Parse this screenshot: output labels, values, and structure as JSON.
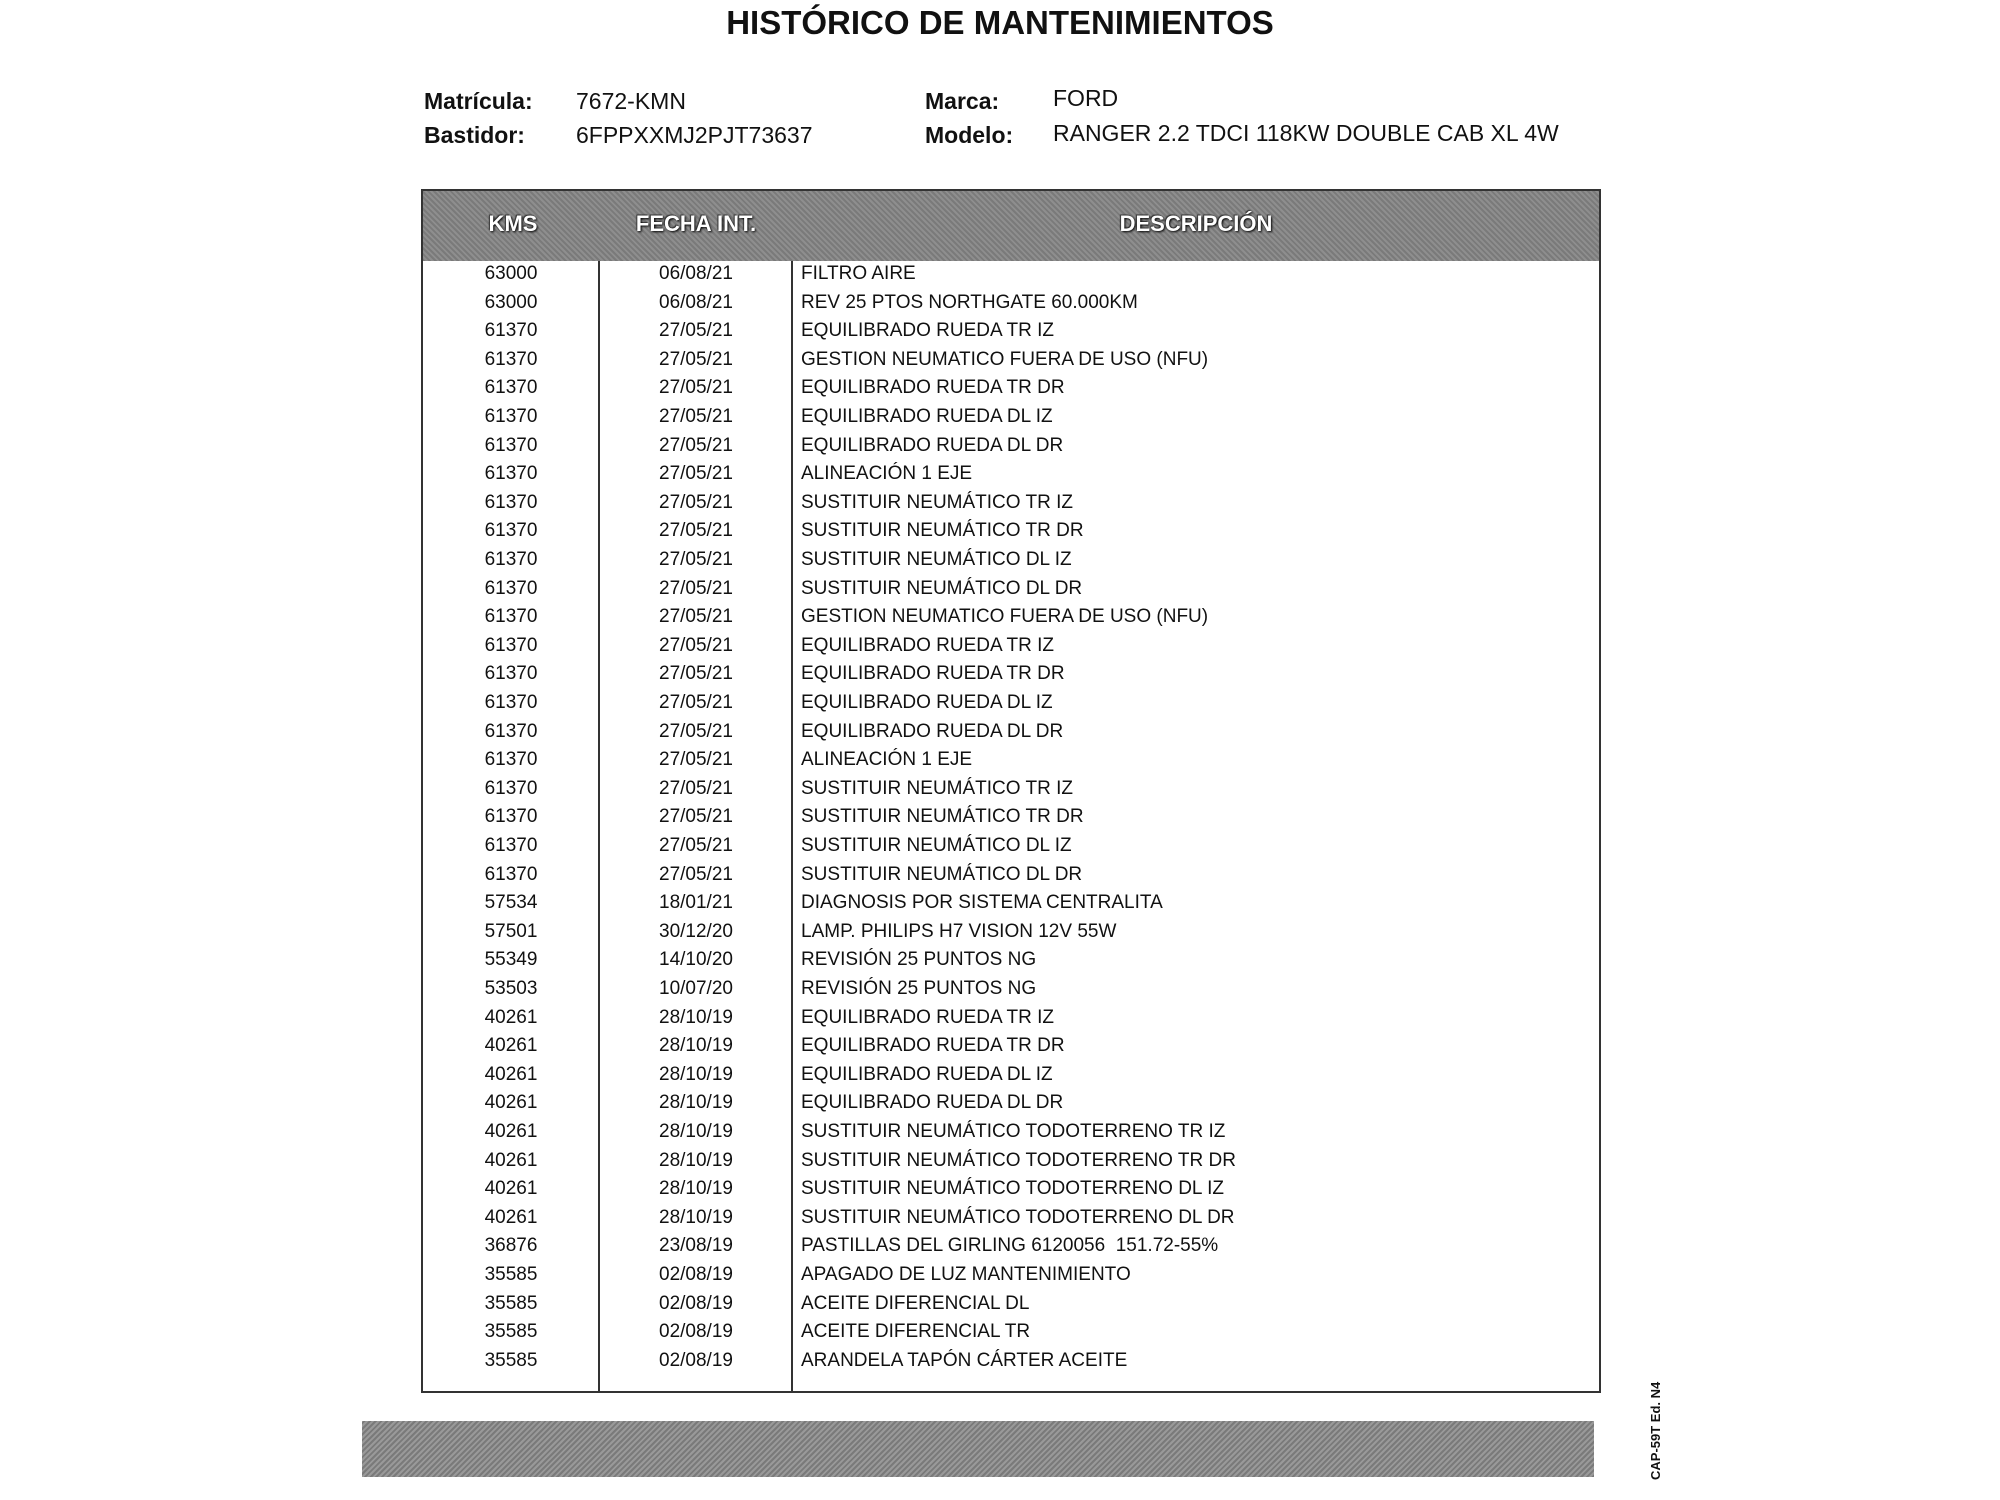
{
  "header": {
    "title": "HISTÓRICO DE MANTENIMIENTOS"
  },
  "vehicle": {
    "plate_label": "Matrícula:",
    "plate": "7672-KMN",
    "frame_label": "Bastidor:",
    "frame": "6FPPXXMJ2PJT73637",
    "brand_label": "Marca:",
    "brand": "FORD",
    "model_label": "Modelo:",
    "model": "RANGER 2.2 TDCI 118KW DOUBLE CAB XL 4W"
  },
  "table": {
    "columns": [
      "KMS",
      "FECHA INT.",
      "DESCRIPCIÓN"
    ],
    "rows": [
      [
        "63000",
        "06/08/21",
        "FILTRO AIRE"
      ],
      [
        "63000",
        "06/08/21",
        "REV 25 PTOS NORTHGATE 60.000KM"
      ],
      [
        "61370",
        "27/05/21",
        "EQUILIBRADO RUEDA TR IZ"
      ],
      [
        "61370",
        "27/05/21",
        "GESTION NEUMATICO FUERA DE USO (NFU)"
      ],
      [
        "61370",
        "27/05/21",
        "EQUILIBRADO RUEDA TR DR"
      ],
      [
        "61370",
        "27/05/21",
        "EQUILIBRADO RUEDA DL IZ"
      ],
      [
        "61370",
        "27/05/21",
        "EQUILIBRADO RUEDA DL DR"
      ],
      [
        "61370",
        "27/05/21",
        "ALINEACIÓN 1 EJE"
      ],
      [
        "61370",
        "27/05/21",
        "SUSTITUIR NEUMÁTICO TR IZ"
      ],
      [
        "61370",
        "27/05/21",
        "SUSTITUIR NEUMÁTICO TR DR"
      ],
      [
        "61370",
        "27/05/21",
        "SUSTITUIR NEUMÁTICO DL IZ"
      ],
      [
        "61370",
        "27/05/21",
        "SUSTITUIR NEUMÁTICO DL DR"
      ],
      [
        "61370",
        "27/05/21",
        "GESTION NEUMATICO FUERA DE USO (NFU)"
      ],
      [
        "61370",
        "27/05/21",
        "EQUILIBRADO RUEDA TR IZ"
      ],
      [
        "61370",
        "27/05/21",
        "EQUILIBRADO RUEDA TR DR"
      ],
      [
        "61370",
        "27/05/21",
        "EQUILIBRADO RUEDA DL IZ"
      ],
      [
        "61370",
        "27/05/21",
        "EQUILIBRADO RUEDA DL DR"
      ],
      [
        "61370",
        "27/05/21",
        "ALINEACIÓN 1 EJE"
      ],
      [
        "61370",
        "27/05/21",
        "SUSTITUIR NEUMÁTICO TR IZ"
      ],
      [
        "61370",
        "27/05/21",
        "SUSTITUIR NEUMÁTICO TR DR"
      ],
      [
        "61370",
        "27/05/21",
        "SUSTITUIR NEUMÁTICO DL IZ"
      ],
      [
        "61370",
        "27/05/21",
        "SUSTITUIR NEUMÁTICO DL DR"
      ],
      [
        "57534",
        "18/01/21",
        "DIAGNOSIS POR SISTEMA CENTRALITA"
      ],
      [
        "57501",
        "30/12/20",
        "LAMP. PHILIPS H7 VISION 12V 55W"
      ],
      [
        "55349",
        "14/10/20",
        "REVISIÓN 25 PUNTOS NG"
      ],
      [
        "53503",
        "10/07/20",
        "REVISIÓN 25 PUNTOS NG"
      ],
      [
        "40261",
        "28/10/19",
        "EQUILIBRADO RUEDA TR IZ"
      ],
      [
        "40261",
        "28/10/19",
        "EQUILIBRADO RUEDA TR DR"
      ],
      [
        "40261",
        "28/10/19",
        "EQUILIBRADO RUEDA DL IZ"
      ],
      [
        "40261",
        "28/10/19",
        "EQUILIBRADO RUEDA DL DR"
      ],
      [
        "40261",
        "28/10/19",
        "SUSTITUIR NEUMÁTICO TODOTERRENO TR IZ"
      ],
      [
        "40261",
        "28/10/19",
        "SUSTITUIR NEUMÁTICO TODOTERRENO TR DR"
      ],
      [
        "40261",
        "28/10/19",
        "SUSTITUIR NEUMÁTICO TODOTERRENO DL IZ"
      ],
      [
        "40261",
        "28/10/19",
        "SUSTITUIR NEUMÁTICO TODOTERRENO DL DR"
      ],
      [
        "36876",
        "23/08/19",
        "PASTILLAS DEL GIRLING 6120056  151.72-55%"
      ],
      [
        "35585",
        "02/08/19",
        "APAGADO DE LUZ MANTENIMIENTO"
      ],
      [
        "35585",
        "02/08/19",
        "ACEITE DIFERENCIAL DL"
      ],
      [
        "35585",
        "02/08/19",
        "ACEITE DIFERENCIAL TR"
      ],
      [
        "35585",
        "02/08/19",
        "ARANDELA TAPÓN CÁRTER ACEITE"
      ]
    ]
  },
  "footer": {
    "code": "CAP-59T Ed. N4"
  }
}
